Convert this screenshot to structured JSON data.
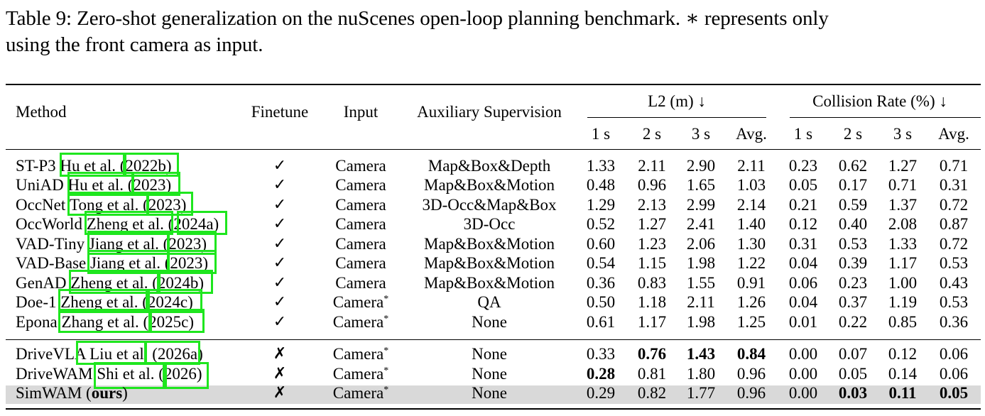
{
  "caption": {
    "line1": "Table 9: Zero-shot generalization on the nuScenes open-loop planning benchmark. ∗ represents only",
    "line2": "using the front camera as input."
  },
  "headers": {
    "method": "Method",
    "finetune": "Finetune",
    "input": "Input",
    "aux": "Auxiliary Supervision",
    "l2": "L2 (m) ↓",
    "collision": "Collision Rate (%) ↓",
    "sub": [
      "1 s",
      "2 s",
      "3 s",
      "Avg.",
      "1 s",
      "2 s",
      "3 s",
      "Avg."
    ]
  },
  "rows": [
    {
      "name": "ST-P3",
      "author": "Hu et al.",
      "year": "(2022b)",
      "finetune": "✓",
      "input": "Camera",
      "star": "",
      "aux": "Map&Box&Depth",
      "values": [
        "1.33",
        "2.11",
        "2.90",
        "2.11",
        "0.23",
        "0.62",
        "1.27",
        "0.71"
      ],
      "bold": []
    },
    {
      "name": "UniAD",
      "author": "Hu et al.",
      "year": "(2023)",
      "finetune": "✓",
      "input": "Camera",
      "star": "",
      "aux": "Map&Box&Motion",
      "values": [
        "0.48",
        "0.96",
        "1.65",
        "1.03",
        "0.05",
        "0.17",
        "0.71",
        "0.31"
      ],
      "bold": []
    },
    {
      "name": "OccNet",
      "author": "Tong et al.",
      "year": "(2023)",
      "finetune": "✓",
      "input": "Camera",
      "star": "",
      "aux": "3D-Occ&Map&Box",
      "values": [
        "1.29",
        "2.13",
        "2.99",
        "2.14",
        "0.21",
        "0.59",
        "1.37",
        "0.72"
      ],
      "bold": []
    },
    {
      "name": "OccWorld",
      "author": "Zheng et al.",
      "year": "(2024a)",
      "finetune": "✓",
      "input": "Camera",
      "star": "",
      "aux": "3D-Occ",
      "values": [
        "0.52",
        "1.27",
        "2.41",
        "1.40",
        "0.12",
        "0.40",
        "2.08",
        "0.87"
      ],
      "bold": []
    },
    {
      "name": "VAD-Tiny",
      "author": "Jiang et al.",
      "year": "(2023)",
      "finetune": "✓",
      "input": "Camera",
      "star": "",
      "aux": "Map&Box&Motion",
      "values": [
        "0.60",
        "1.23",
        "2.06",
        "1.30",
        "0.31",
        "0.53",
        "1.33",
        "0.72"
      ],
      "bold": []
    },
    {
      "name": "VAD-Base",
      "author": "Jiang et al.",
      "year": "(2023)",
      "finetune": "✓",
      "input": "Camera",
      "star": "",
      "aux": "Map&Box&Motion",
      "values": [
        "0.54",
        "1.15",
        "1.98",
        "1.22",
        "0.04",
        "0.39",
        "1.17",
        "0.53"
      ],
      "bold": []
    },
    {
      "name": "GenAD",
      "author": "Zheng et al.",
      "year": "(2024b)",
      "finetune": "✓",
      "input": "Camera",
      "star": "",
      "aux": "Map&Box&Motion",
      "values": [
        "0.36",
        "0.83",
        "1.55",
        "0.91",
        "0.06",
        "0.23",
        "1.00",
        "0.43"
      ],
      "bold": []
    },
    {
      "name": "Doe-1",
      "author": "Zheng et al.",
      "year": "(2024c)",
      "finetune": "✓",
      "input": "Camera",
      "star": "*",
      "aux": "QA",
      "values": [
        "0.50",
        "1.18",
        "2.11",
        "1.26",
        "0.04",
        "0.37",
        "1.19",
        "0.53"
      ],
      "bold": []
    },
    {
      "name": "Epona",
      "author": "Zhang et al.",
      "year": "(2025c)",
      "finetune": "✓",
      "input": "Camera",
      "star": "*",
      "aux": "None",
      "values": [
        "0.61",
        "1.17",
        "1.98",
        "1.25",
        "0.01",
        "0.22",
        "0.85",
        "0.36"
      ],
      "bold": []
    },
    {
      "name": "DriveVLA",
      "author": "Liu et al.",
      "year": "(2026a)",
      "finetune": "✗",
      "input": "Camera",
      "star": "*",
      "aux": "None",
      "values": [
        "0.33",
        "0.76",
        "1.43",
        "0.84",
        "0.00",
        "0.07",
        "0.12",
        "0.06"
      ],
      "bold": [
        1,
        2,
        3
      ]
    },
    {
      "name": "DriveWAM",
      "author": "Shi et al.",
      "year": "(2026)",
      "finetune": "✗",
      "input": "Camera",
      "star": "*",
      "aux": "None",
      "values": [
        "0.28",
        "0.81",
        "1.80",
        "0.96",
        "0.00",
        "0.05",
        "0.14",
        "0.06"
      ],
      "bold": [
        0
      ]
    },
    {
      "name": "SimWAM (",
      "bold_name": "ours",
      "name_tail": ")",
      "author": "",
      "year": "",
      "finetune": "✗",
      "input": "Camera",
      "star": "*",
      "aux": "None",
      "values": [
        "0.29",
        "0.82",
        "1.77",
        "0.96",
        "0.00",
        "0.03",
        "0.11",
        "0.05"
      ],
      "bold": [
        5,
        6,
        7
      ]
    }
  ]
}
